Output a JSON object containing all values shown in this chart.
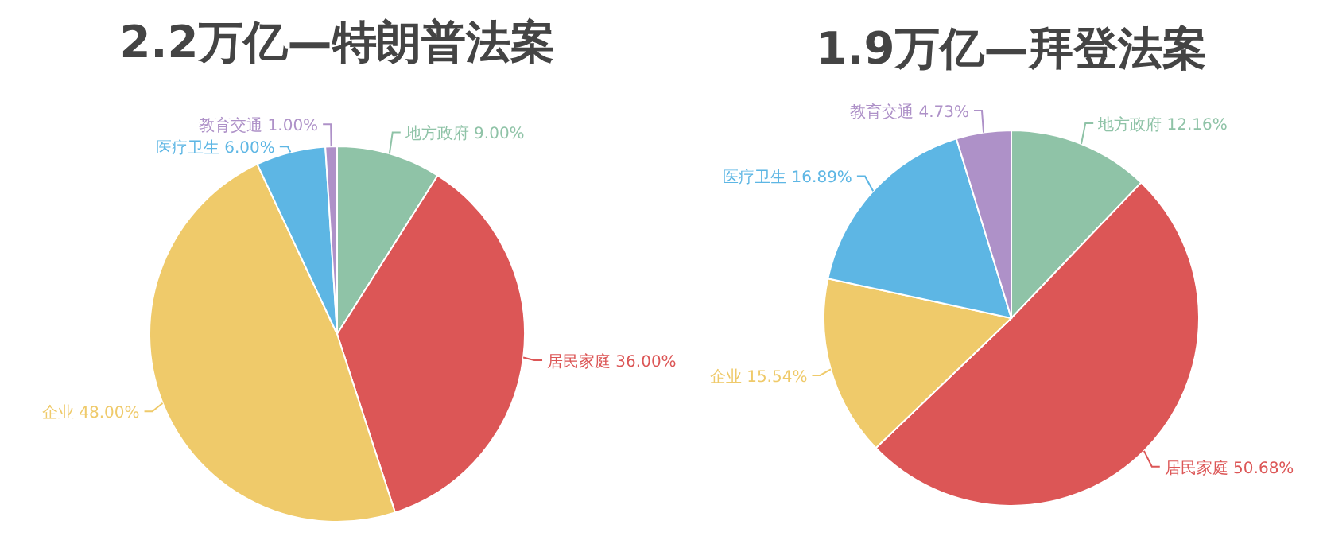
{
  "chart_data": [
    {
      "type": "pie",
      "title": "2.2万亿—特朗普法案",
      "categories": [
        "地方政府",
        "居民家庭",
        "企业",
        "医疗卫生",
        "教育交通"
      ],
      "values": [
        9,
        36,
        48,
        6,
        1
      ],
      "value_labels": [
        "9.00%",
        "36.00%",
        "48.00%",
        "6.00%",
        "1.00%"
      ],
      "colors": [
        "#8fc3a7",
        "#dc5656",
        "#efca6a",
        "#5db6e4",
        "#ae91c8"
      ]
    },
    {
      "type": "pie",
      "title": "1.9万亿—拜登法案",
      "categories": [
        "地方政府",
        "居民家庭",
        "企业",
        "医疗卫生",
        "教育交通"
      ],
      "values": [
        12.16,
        50.68,
        15.54,
        16.89,
        4.73
      ],
      "value_labels": [
        "12.16%",
        "50.68%",
        "15.54%",
        "16.89%",
        "4.73%"
      ],
      "colors": [
        "#8fc3a7",
        "#dc5656",
        "#efca6a",
        "#5db6e4",
        "#ae91c8"
      ]
    }
  ]
}
